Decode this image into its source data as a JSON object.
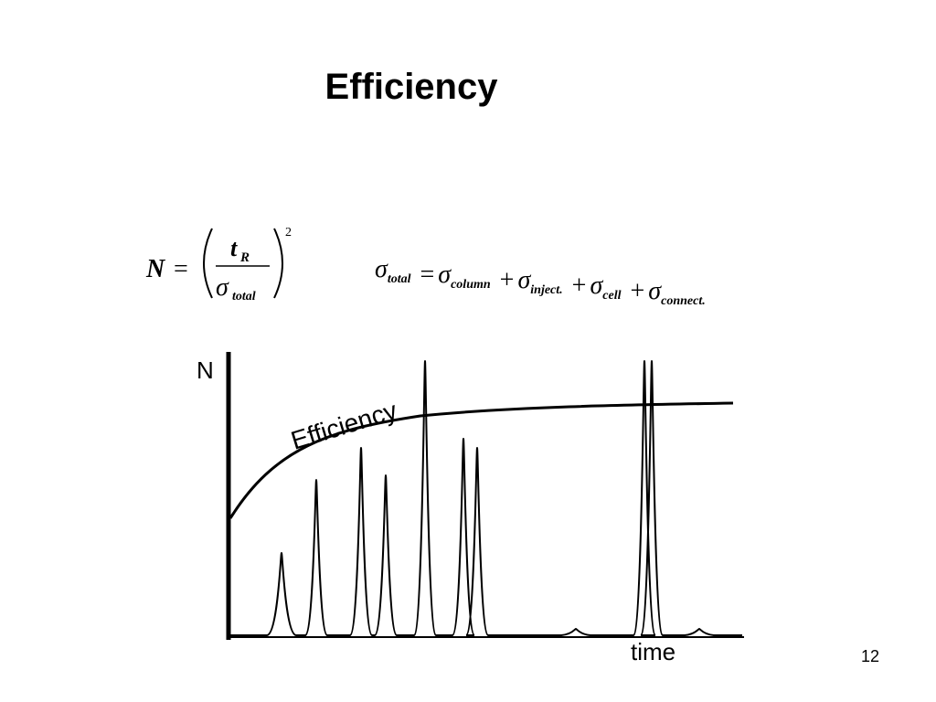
{
  "title": "Efficiency",
  "formula1": {
    "lhs": "N",
    "equals": "=",
    "numerator": "t",
    "numerator_sub": "R",
    "denominator": "σ",
    "denominator_sub": "total",
    "exponent": "2"
  },
  "formula2": {
    "tokens": [
      {
        "text": "σ",
        "sub": "total"
      },
      {
        "text": "="
      },
      {
        "text": "σ",
        "sub": "column"
      },
      {
        "text": "+"
      },
      {
        "text": "σ",
        "sub": "inject."
      },
      {
        "text": "+"
      },
      {
        "text": "σ",
        "sub": "cell"
      },
      {
        "text": "+"
      },
      {
        "text": "σ",
        "sub": "connect."
      }
    ]
  },
  "figure": {
    "y_label": "N",
    "curve_label": "Efficiency",
    "x_label": "time"
  },
  "page_number": "12"
}
